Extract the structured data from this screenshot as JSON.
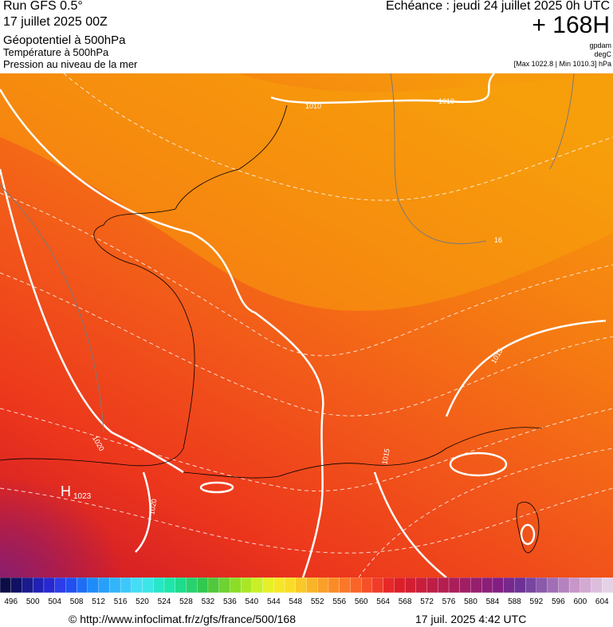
{
  "header": {
    "run": "Run GFS 0.5°",
    "run_date": "17 juillet 2025 00Z",
    "field1": "Géopotentiel à 500hPa",
    "field2": "Température à 500hPa",
    "field3": "Pression au niveau de la mer",
    "echeance": "Echéance : jeudi 24 juillet 2025 0h UTC",
    "lead": "+ 168H",
    "unit1": "gpdam",
    "unit2": "degC",
    "range": "[Max 1022.8 | Min 1010.3] hPa"
  },
  "map": {
    "labels": [
      "1010",
      "1010",
      "16",
      "1015",
      "1020",
      "1020",
      "H",
      "1023",
      "1015"
    ]
  },
  "colorbar": {
    "ticks": [
      496,
      500,
      504,
      508,
      512,
      516,
      520,
      524,
      528,
      532,
      536,
      540,
      544,
      548,
      552,
      556,
      560,
      564,
      568,
      572,
      576,
      580,
      584,
      588,
      592,
      596,
      600,
      604
    ],
    "colors": [
      "#0c0c46",
      "#101064",
      "#1a1a8c",
      "#2020b4",
      "#2828d0",
      "#2c3ce8",
      "#2050f0",
      "#1e6ef5",
      "#1e8cf8",
      "#28a0fa",
      "#32b4fa",
      "#3cc8fa",
      "#46dcf5",
      "#3ce6e6",
      "#28e6c8",
      "#1ee6aa",
      "#1edc8c",
      "#28d26e",
      "#32c850",
      "#50c83c",
      "#6ed232",
      "#8cdc28",
      "#aae628",
      "#c8f028",
      "#e6f028",
      "#f5e628",
      "#fadc28",
      "#fac828",
      "#fab428",
      "#faa028",
      "#fa8c28",
      "#fa7828",
      "#fa6428",
      "#f55028",
      "#f03c28",
      "#e62828",
      "#dc1e28",
      "#d21e32",
      "#c81e3c",
      "#be1e46",
      "#b41e50",
      "#aa1e5a",
      "#a01e64",
      "#961e6e",
      "#8c1e78",
      "#821e82",
      "#78288c",
      "#6e3296",
      "#7846a0",
      "#8c5aaa",
      "#a06eb4",
      "#b482be",
      "#c896c8",
      "#d2aad2",
      "#dcbedc",
      "#e6d2e6"
    ]
  },
  "footer": {
    "url": "© http://www.infoclimat.fr/z/gfs/france/500/168",
    "time": "17 juil. 2025  4:42 UTC"
  }
}
